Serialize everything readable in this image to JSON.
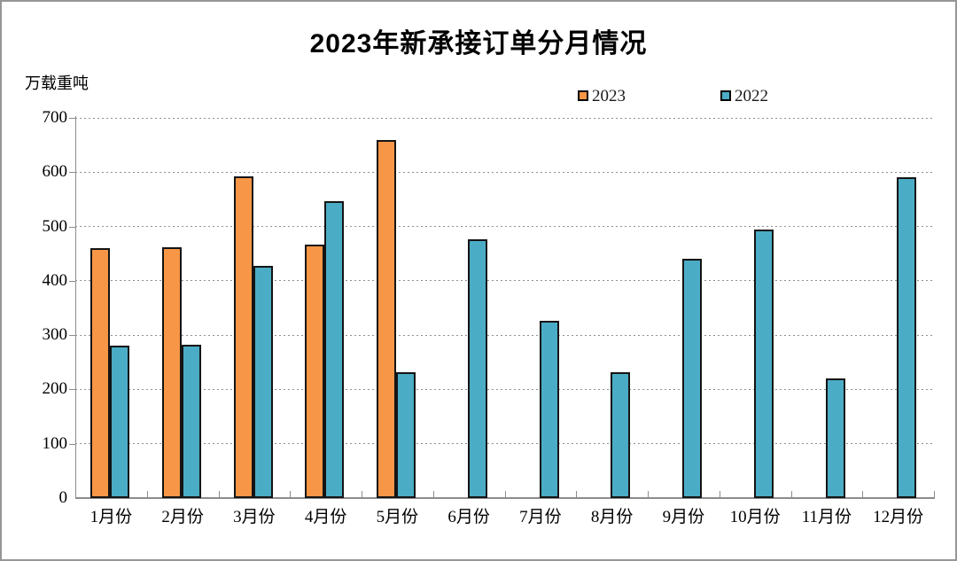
{
  "title": "2023年新承接订单分月情况",
  "unit_label": "万载重吨",
  "legend": [
    {
      "label": "2023",
      "color": "#F79646"
    },
    {
      "label": "2022",
      "color": "#4BACC6"
    }
  ],
  "colors": {
    "bar_2023": "#F79646",
    "bar_2022": "#4BACC6",
    "bar_border": "#141414",
    "axis": "#8c8c8c",
    "frame_border": "#969696"
  },
  "y_axis_ticks": [
    "0",
    "100",
    "200",
    "300",
    "400",
    "500",
    "600",
    "700"
  ],
  "chart_data": {
    "type": "bar",
    "title": "2023年新承接订单分月情况",
    "xlabel": "",
    "ylabel": "万载重吨",
    "categories": [
      "1月份",
      "2月份",
      "3月份",
      "4月份",
      "5月份",
      "6月份",
      "7月份",
      "8月份",
      "9月份",
      "10月份",
      "11月份",
      "12月份"
    ],
    "series": [
      {
        "name": "2023",
        "color": "#F79646",
        "values": [
          460,
          462,
          593,
          466,
          659,
          null,
          null,
          null,
          null,
          null,
          null,
          null
        ]
      },
      {
        "name": "2022",
        "color": "#4BACC6",
        "values": [
          281,
          283,
          428,
          546,
          231,
          477,
          326,
          232,
          440,
          494,
          220,
          591
        ]
      }
    ],
    "ylim": [
      0,
      700
    ],
    "ytick_interval": 100,
    "grid": "horizontal-dashed",
    "legend_position": "top-center"
  }
}
